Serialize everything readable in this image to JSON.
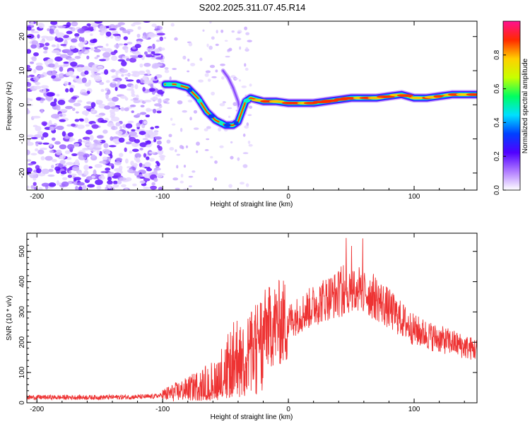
{
  "title": "S202.2025.311.07.45.R14",
  "chart_data": [
    {
      "type": "heatmap",
      "name": "spectrogram",
      "xlabel": "Height of straight line (km)",
      "ylabel": "Frequency (Hz)",
      "xlim": [
        -208,
        150
      ],
      "ylim": [
        -25,
        24.5
      ],
      "xticks": [
        -200,
        -100,
        0,
        100
      ],
      "yticks": [
        -20,
        -10,
        0,
        10,
        20
      ],
      "colorbar": {
        "label": "Normalized spectral amplitude",
        "range": [
          0,
          1
        ],
        "ticks": [
          0.0,
          0.2,
          0.4,
          0.6,
          0.8
        ],
        "tick_labels": [
          "0.0",
          "0.2",
          "0.4",
          "0.6",
          "0.8"
        ],
        "colors": [
          "#ffffff",
          "#b07bff",
          "#5000ff",
          "#0040ff",
          "#00e0ff",
          "#00ff60",
          "#c8ff00",
          "#ffd000",
          "#ff2a00",
          "#ff1090"
        ]
      },
      "ridge": {
        "x": [
          -98,
          -90,
          -80,
          -72,
          -65,
          -58,
          -50,
          -44,
          -40,
          -37,
          -34,
          -30,
          -25,
          -20,
          -10,
          0,
          10,
          20,
          30,
          40,
          50,
          60,
          70,
          80,
          90,
          100,
          110,
          120,
          130,
          140,
          150
        ],
        "y": [
          6,
          6,
          5,
          2,
          -2,
          -4.5,
          -6,
          -6,
          -5,
          -2,
          1,
          2,
          1.5,
          1,
          1,
          0.5,
          0.5,
          0.5,
          1,
          1.5,
          2,
          2,
          2,
          2.5,
          3,
          2,
          2,
          2.5,
          3,
          3,
          3
        ]
      },
      "side_feature": {
        "x": [
          -52,
          -48,
          -44,
          -40,
          -38
        ],
        "y": [
          10,
          8,
          5,
          1,
          -3
        ]
      }
    },
    {
      "type": "line",
      "name": "snr",
      "xlabel": "Height of straight line (km)",
      "ylabel": "SNR (10 * v/v)",
      "xlim": [
        -208,
        150
      ],
      "ylim": [
        0,
        560
      ],
      "xticks": [
        -200,
        -100,
        0,
        100
      ],
      "yticks": [
        0,
        100,
        200,
        300,
        400,
        500
      ],
      "color": "#ee3333",
      "trend": {
        "x": [
          -208,
          -150,
          -110,
          -100,
          -90,
          -80,
          -70,
          -60,
          -50,
          -40,
          -30,
          -20,
          -10,
          0,
          10,
          20,
          30,
          40,
          50,
          60,
          70,
          80,
          90,
          100,
          110,
          120,
          130,
          140,
          150
        ],
        "y": [
          18,
          18,
          20,
          25,
          35,
          45,
          60,
          75,
          110,
          160,
          200,
          240,
          260,
          270,
          295,
          320,
          345,
          360,
          375,
          370,
          345,
          310,
          275,
          240,
          225,
          210,
          200,
          185,
          175
        ]
      }
    }
  ]
}
